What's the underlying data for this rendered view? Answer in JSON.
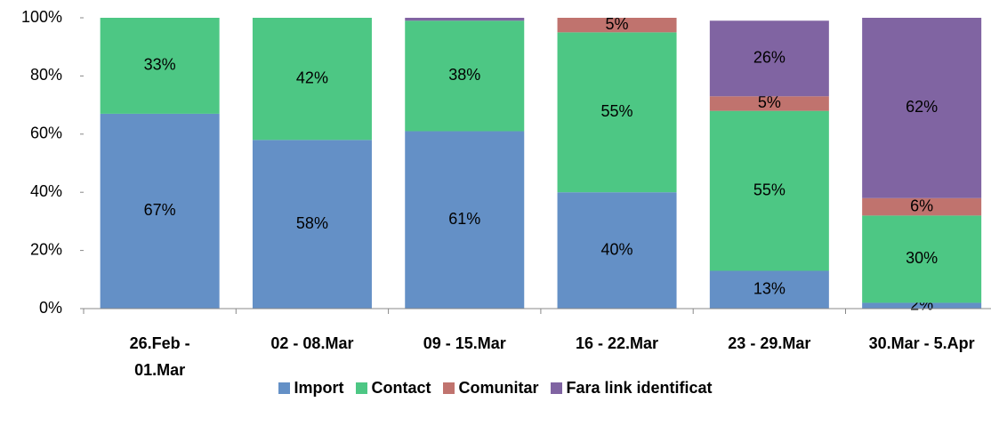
{
  "chart_data": {
    "type": "stacked_bar",
    "categories": [
      "26.Feb - 01.Mar",
      "02 - 08.Mar",
      "09 - 15.Mar",
      "16 - 22.Mar",
      "23 - 29.Mar",
      "30.Mar - 5.Apr"
    ],
    "series": [
      {
        "name": "Import",
        "color": "#6490c6",
        "values": [
          67,
          58,
          61,
          40,
          13,
          2
        ],
        "value_labels": [
          "67%",
          "58%",
          "61%",
          "40%",
          "13%",
          "2%"
        ]
      },
      {
        "name": "Contact",
        "color": "#4dc784",
        "values": [
          33,
          42,
          38,
          55,
          55,
          30
        ],
        "value_labels": [
          "33%",
          "42%",
          "38%",
          "55%",
          "55%",
          "30%"
        ]
      },
      {
        "name": "Comunitar",
        "color": "#c0736e",
        "values": [
          0,
          0,
          0,
          5,
          5,
          6
        ],
        "value_labels": [
          null,
          null,
          null,
          "5%",
          "5%",
          "6%"
        ]
      },
      {
        "name": "Fara link identificat",
        "color": "#8064a2",
        "values": [
          0,
          0,
          1,
          0,
          26,
          62
        ],
        "value_labels": [
          null,
          null,
          null,
          null,
          "26%",
          "62%"
        ]
      }
    ],
    "ylim": [
      0,
      100
    ],
    "yticks": [
      {
        "value": 0,
        "label": "0%"
      },
      {
        "value": 20,
        "label": "20%"
      },
      {
        "value": 40,
        "label": "40%"
      },
      {
        "value": 60,
        "label": "60%"
      },
      {
        "value": 80,
        "label": "80%"
      },
      {
        "value": 100,
        "label": "100%"
      }
    ],
    "grid": false,
    "legend": "bottom"
  }
}
